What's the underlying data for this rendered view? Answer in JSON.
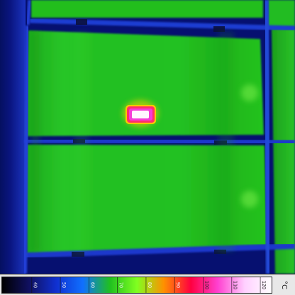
{
  "thermal_image": {
    "palette": {
      "background": "#061070",
      "cold_frame": "#07146e",
      "module_green": "#22c81f",
      "module_green_dark": "#1a9d18",
      "frame_blue": "#1f46d8",
      "hotspot_core": "#ffffff",
      "hotspot_hot": "#f03cc8",
      "hotspot_warm": "#ffd800"
    },
    "colorbar": {
      "ticks": [
        "40",
        "50",
        "60",
        "70",
        "80",
        "90",
        "100",
        "110",
        "120"
      ],
      "unit": "°C",
      "colors": [
        "#000000",
        "#101060",
        "#1030d0",
        "#1070ff",
        "#20c020",
        "#80ff20",
        "#ff9000",
        "#ff0040",
        "#ff40d0",
        "#ffd0ff",
        "#ffffff"
      ]
    }
  }
}
